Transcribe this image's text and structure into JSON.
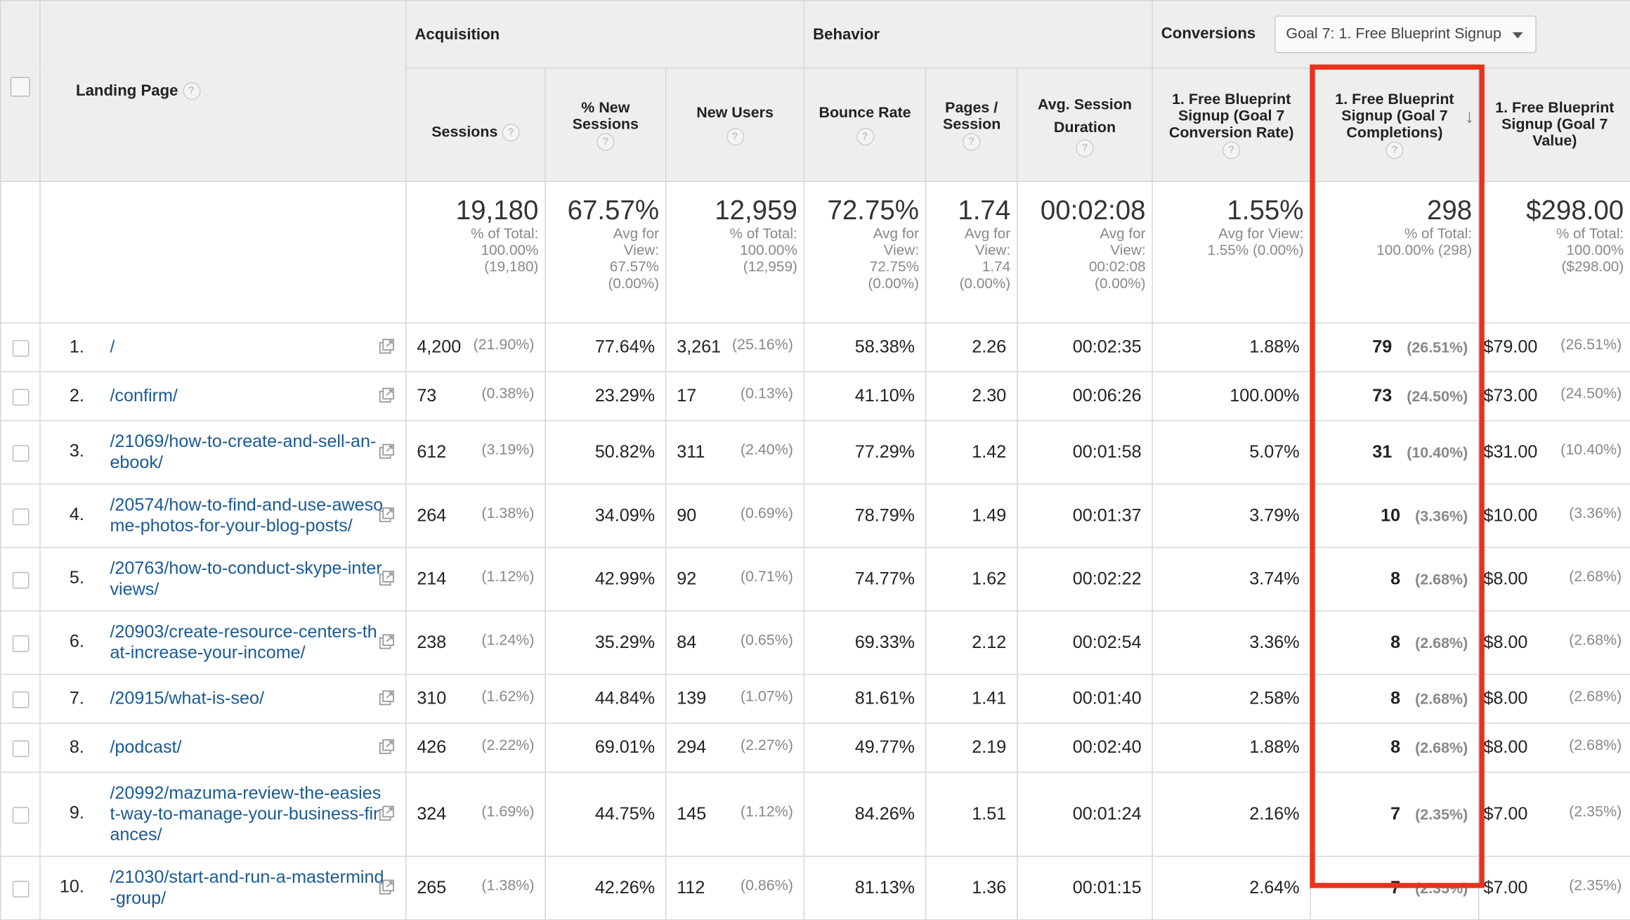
{
  "groups": {
    "acquisition": "Acquisition",
    "behavior": "Behavior",
    "conversions": "Conversions",
    "goal_select": "Goal 7: 1. Free Blueprint Signup"
  },
  "columns": {
    "landing_page": "Landing Page",
    "sessions": "Sessions",
    "new_sessions": "% New Sessions",
    "new_users": "New Users",
    "bounce_rate": "Bounce Rate",
    "pages_session": "Pages / Session",
    "avg_duration": "Avg. Session Duration",
    "conv_rate": "1. Free Blueprint Signup (Goal 7 Conversion Rate)",
    "completions": "1. Free Blueprint Signup (Goal 7 Completions)",
    "value": "1. Free Blueprint Signup (Goal 7 Value)"
  },
  "totals": {
    "sessions": {
      "big": "19,180",
      "sub": "% of Total: 100.00% (19,180)"
    },
    "new_sessions": {
      "big": "67.57%",
      "sub": "Avg for View: 67.57% (0.00%)"
    },
    "new_users": {
      "big": "12,959",
      "sub": "% of Total: 100.00% (12,959)"
    },
    "bounce_rate": {
      "big": "72.75%",
      "sub": "Avg for View: 72.75% (0.00%)"
    },
    "pages_session": {
      "big": "1.74",
      "sub": "Avg for View: 1.74 (0.00%)"
    },
    "avg_duration": {
      "big": "00:02:08",
      "sub": "Avg for View: 00:02:08 (0.00%)"
    },
    "conv_rate": {
      "big": "1.55%",
      "sub": "Avg for View: 1.55% (0.00%)"
    },
    "completions": {
      "big": "298",
      "sub": "% of Total: 100.00% (298)"
    },
    "value": {
      "big": "$298.00",
      "sub": "% of Total: 100.00% ($298.00)"
    }
  },
  "rows": [
    {
      "num": "1.",
      "page": "/",
      "sessions": "4,200",
      "sessions_pct": "(21.90%)",
      "new_sessions": "77.64%",
      "new_users": "3,261",
      "new_users_pct": "(25.16%)",
      "bounce": "58.38%",
      "pages": "2.26",
      "duration": "00:02:35",
      "conv": "1.88%",
      "comp": "79",
      "comp_pct": "(26.51%)",
      "value": "$79.00",
      "value_pct": "(26.51%)"
    },
    {
      "num": "2.",
      "page": "/confirm/",
      "sessions": "73",
      "sessions_pct": "(0.38%)",
      "new_sessions": "23.29%",
      "new_users": "17",
      "new_users_pct": "(0.13%)",
      "bounce": "41.10%",
      "pages": "2.30",
      "duration": "00:06:26",
      "conv": "100.00%",
      "comp": "73",
      "comp_pct": "(24.50%)",
      "value": "$73.00",
      "value_pct": "(24.50%)"
    },
    {
      "num": "3.",
      "page": "/21069/how-to-create-and-sell-an-ebook/",
      "sessions": "612",
      "sessions_pct": "(3.19%)",
      "new_sessions": "50.82%",
      "new_users": "311",
      "new_users_pct": "(2.40%)",
      "bounce": "77.29%",
      "pages": "1.42",
      "duration": "00:01:58",
      "conv": "5.07%",
      "comp": "31",
      "comp_pct": "(10.40%)",
      "value": "$31.00",
      "value_pct": "(10.40%)"
    },
    {
      "num": "4.",
      "page": "/20574/how-to-find-and-use-awesome-photos-for-your-blog-posts/",
      "sessions": "264",
      "sessions_pct": "(1.38%)",
      "new_sessions": "34.09%",
      "new_users": "90",
      "new_users_pct": "(0.69%)",
      "bounce": "78.79%",
      "pages": "1.49",
      "duration": "00:01:37",
      "conv": "3.79%",
      "comp": "10",
      "comp_pct": "(3.36%)",
      "value": "$10.00",
      "value_pct": "(3.36%)"
    },
    {
      "num": "5.",
      "page": "/20763/how-to-conduct-skype-interviews/",
      "sessions": "214",
      "sessions_pct": "(1.12%)",
      "new_sessions": "42.99%",
      "new_users": "92",
      "new_users_pct": "(0.71%)",
      "bounce": "74.77%",
      "pages": "1.62",
      "duration": "00:02:22",
      "conv": "3.74%",
      "comp": "8",
      "comp_pct": "(2.68%)",
      "value": "$8.00",
      "value_pct": "(2.68%)"
    },
    {
      "num": "6.",
      "page": "/20903/create-resource-centers-that-increase-your-income/",
      "sessions": "238",
      "sessions_pct": "(1.24%)",
      "new_sessions": "35.29%",
      "new_users": "84",
      "new_users_pct": "(0.65%)",
      "bounce": "69.33%",
      "pages": "2.12",
      "duration": "00:02:54",
      "conv": "3.36%",
      "comp": "8",
      "comp_pct": "(2.68%)",
      "value": "$8.00",
      "value_pct": "(2.68%)"
    },
    {
      "num": "7.",
      "page": "/20915/what-is-seo/",
      "sessions": "310",
      "sessions_pct": "(1.62%)",
      "new_sessions": "44.84%",
      "new_users": "139",
      "new_users_pct": "(1.07%)",
      "bounce": "81.61%",
      "pages": "1.41",
      "duration": "00:01:40",
      "conv": "2.58%",
      "comp": "8",
      "comp_pct": "(2.68%)",
      "value": "$8.00",
      "value_pct": "(2.68%)"
    },
    {
      "num": "8.",
      "page": "/podcast/",
      "sessions": "426",
      "sessions_pct": "(2.22%)",
      "new_sessions": "69.01%",
      "new_users": "294",
      "new_users_pct": "(2.27%)",
      "bounce": "49.77%",
      "pages": "2.19",
      "duration": "00:02:40",
      "conv": "1.88%",
      "comp": "8",
      "comp_pct": "(2.68%)",
      "value": "$8.00",
      "value_pct": "(2.68%)"
    },
    {
      "num": "9.",
      "page": "/20992/mazuma-review-the-easiest-way-to-manage-your-business-finances/",
      "sessions": "324",
      "sessions_pct": "(1.69%)",
      "new_sessions": "44.75%",
      "new_users": "145",
      "new_users_pct": "(1.12%)",
      "bounce": "84.26%",
      "pages": "1.51",
      "duration": "00:01:24",
      "conv": "2.16%",
      "comp": "7",
      "comp_pct": "(2.35%)",
      "value": "$7.00",
      "value_pct": "(2.35%)"
    },
    {
      "num": "10.",
      "page": "/21030/start-and-run-a-mastermind-group/",
      "sessions": "265",
      "sessions_pct": "(1.38%)",
      "new_sessions": "42.26%",
      "new_users": "112",
      "new_users_pct": "(0.86%)",
      "bounce": "81.13%",
      "pages": "1.36",
      "duration": "00:01:15",
      "conv": "2.64%",
      "comp": "7",
      "comp_pct": "(2.35%)",
      "value": "$7.00",
      "value_pct": "(2.35%)"
    }
  ]
}
